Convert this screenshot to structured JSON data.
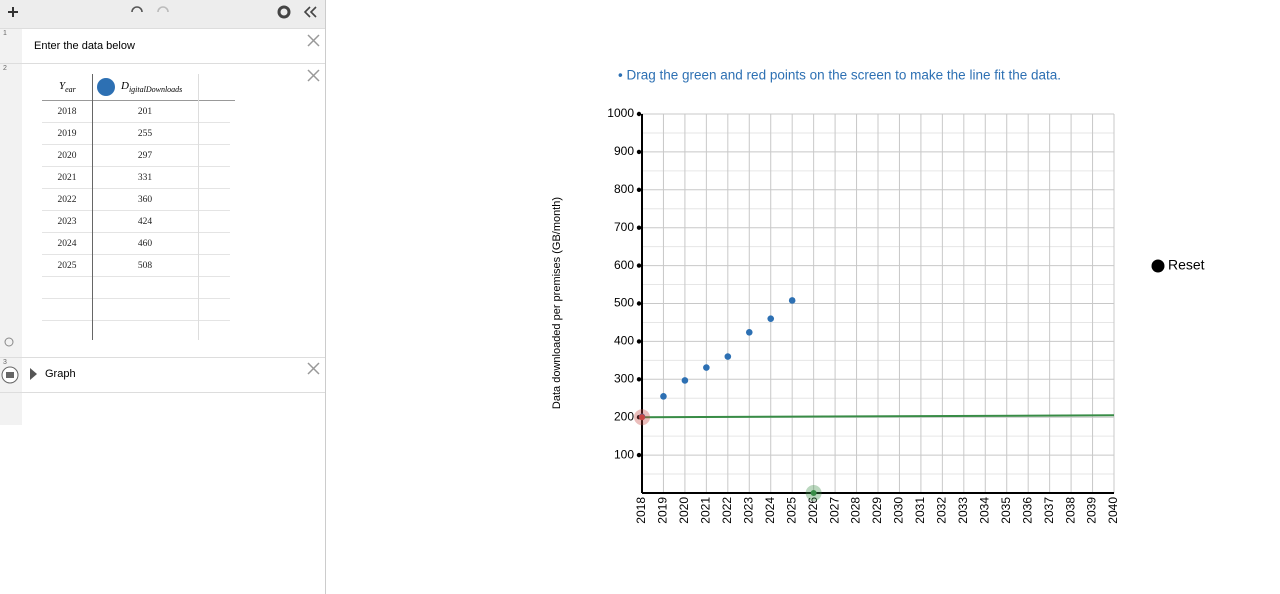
{
  "expressions": [
    {
      "number": "1",
      "text": "Enter the data below"
    },
    {
      "number": "2",
      "table": {
        "columns": [
          {
            "symbol": "Y",
            "subscript": "ear"
          },
          {
            "symbol": "D",
            "subscript": "igitalDownloads"
          }
        ],
        "rows": [
          [
            2018,
            201
          ],
          [
            2019,
            255
          ],
          [
            2020,
            297
          ],
          [
            2021,
            331
          ],
          [
            2022,
            360
          ],
          [
            2023,
            424
          ],
          [
            2024,
            460
          ],
          [
            2025,
            508
          ]
        ]
      }
    },
    {
      "number": "3",
      "text": "Graph"
    }
  ],
  "chart_data": {
    "type": "scatter",
    "instruction": "• Drag the green and red points on the screen to make the line fit the data.",
    "y_label": "Data downloaded per premises (GB/month)",
    "reset": "Reset",
    "x": [
      2018,
      2019,
      2020,
      2021,
      2022,
      2023,
      2024,
      2025
    ],
    "values": [
      201,
      255,
      297,
      331,
      360,
      424,
      460,
      508
    ],
    "color": "#2d70b3",
    "xlim": [
      2018,
      2040
    ],
    "xticks": [
      2018,
      2019,
      2020,
      2021,
      2022,
      2023,
      2024,
      2025,
      2026,
      2027,
      2028,
      2029,
      2030,
      2031,
      2032,
      2033,
      2034,
      2035,
      2036,
      2037,
      2038,
      2039,
      2040
    ],
    "ylim": [
      0,
      1000
    ],
    "yticks": [
      100,
      200,
      300,
      400,
      500,
      600,
      700,
      800,
      900,
      1000
    ],
    "minor_yticks": [
      50,
      150,
      250,
      350,
      450,
      550,
      650,
      750,
      850,
      950
    ],
    "grid": true,
    "fit_line": {
      "x": [
        2018,
        2040
      ],
      "values": [
        200,
        205
      ],
      "color": "#388c46"
    },
    "handles": {
      "x": [
        2018,
        2026
      ],
      "values": [
        200,
        0
      ],
      "colors": [
        "#c74440",
        "#388c46"
      ]
    }
  }
}
